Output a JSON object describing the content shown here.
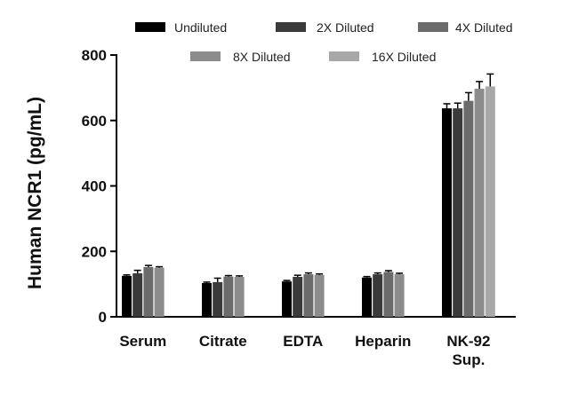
{
  "chart_data": {
    "type": "bar",
    "title": "",
    "xlabel": "",
    "ylabel": "Human NCR1 (pg/mL)",
    "ylim": [
      0,
      800
    ],
    "yticks": [
      0,
      200,
      400,
      600,
      800
    ],
    "categories": [
      {
        "lines": [
          "Serum"
        ]
      },
      {
        "lines": [
          "Citrate"
        ]
      },
      {
        "lines": [
          "EDTA"
        ]
      },
      {
        "lines": [
          "Heparin"
        ]
      },
      {
        "lines": [
          "NK-92",
          "Sup."
        ]
      }
    ],
    "series": [
      {
        "name": "Undiluted",
        "color": "#000000",
        "values": [
          125,
          103,
          108,
          120,
          637
        ],
        "errors": [
          3,
          3,
          3,
          3,
          14
        ]
      },
      {
        "name": "2X Diluted",
        "color": "#3a3a3a",
        "values": [
          133,
          106,
          122,
          130,
          637
        ],
        "errors": [
          9,
          12,
          5,
          4,
          16
        ]
      },
      {
        "name": "4X Diluted",
        "color": "#6b6b6b",
        "values": [
          152,
          123,
          130,
          137,
          660
        ],
        "errors": [
          5,
          3,
          4,
          4,
          25
        ]
      },
      {
        "name": "8X Diluted",
        "color": "#8c8c8c",
        "values": [
          150,
          122,
          128,
          130,
          697
        ],
        "errors": [
          3,
          3,
          3,
          3,
          22
        ]
      },
      {
        "name": "16X Diluted",
        "color": "#a8a8a8",
        "values": [
          null,
          null,
          null,
          null,
          704
        ],
        "errors": [
          null,
          null,
          null,
          null,
          38
        ]
      }
    ],
    "legend": "top",
    "grid": false
  }
}
